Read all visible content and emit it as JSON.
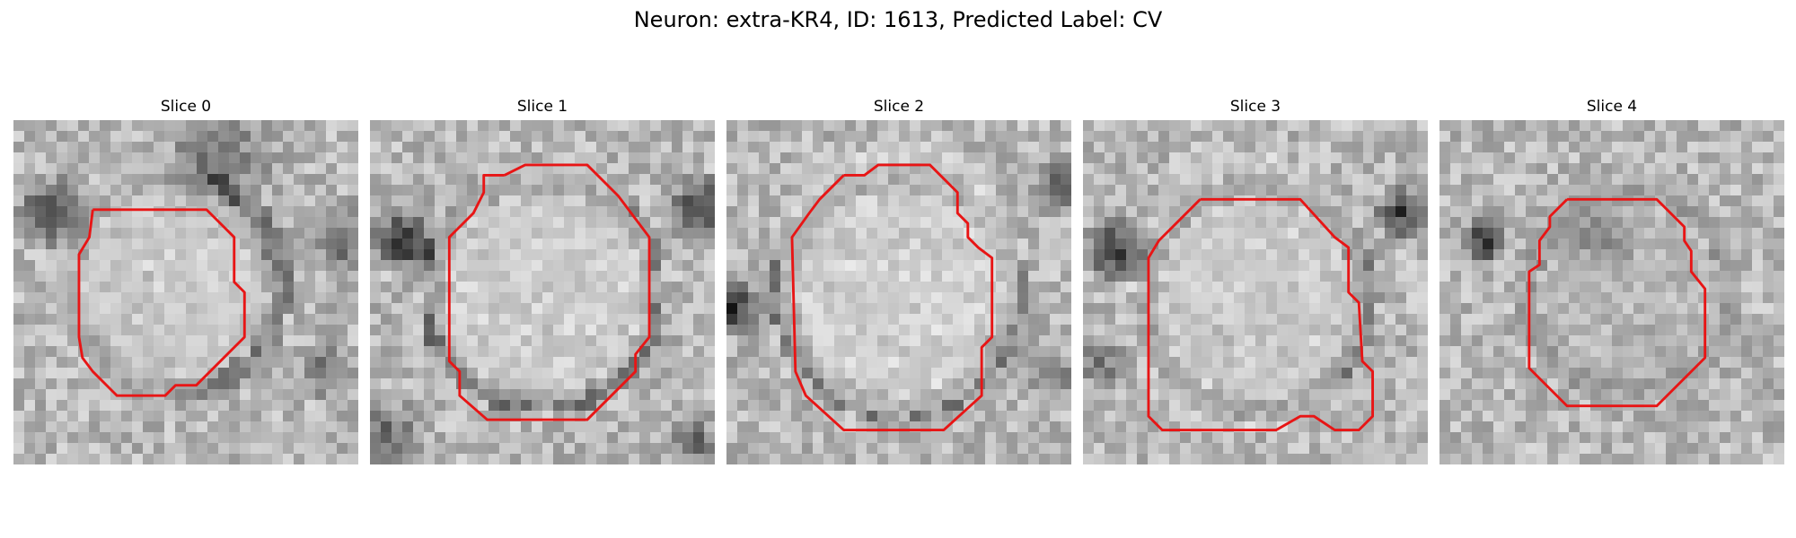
{
  "figure": {
    "title": "Neuron: extra-KR4, ID: 1613, Predicted Label: CV"
  },
  "colors": {
    "contour": "#e81515",
    "background": "#ffffff"
  },
  "panels": [
    {
      "title": "Slice 0",
      "seed": 11,
      "dark_spots": [
        [
          0.12,
          0.27,
          0.08,
          0.55
        ],
        [
          0.97,
          0.35,
          0.08,
          0.35
        ],
        [
          0.9,
          0.73,
          0.06,
          0.3
        ],
        [
          0.6,
          0.12,
          0.12,
          0.3
        ]
      ],
      "halo": [
        0.47,
        0.48,
        0.45,
        0.55,
        0.35
      ],
      "cell": [
        0.4,
        0.46,
        0.3,
        0.35,
        0.85
      ],
      "contour": [
        [
          0.23,
          0.26
        ],
        [
          0.56,
          0.26
        ],
        [
          0.64,
          0.34
        ],
        [
          0.64,
          0.47
        ],
        [
          0.67,
          0.5
        ],
        [
          0.67,
          0.63
        ],
        [
          0.53,
          0.77
        ],
        [
          0.47,
          0.77
        ],
        [
          0.44,
          0.8
        ],
        [
          0.3,
          0.8
        ],
        [
          0.23,
          0.73
        ],
        [
          0.2,
          0.69
        ],
        [
          0.19,
          0.63
        ],
        [
          0.19,
          0.39
        ],
        [
          0.22,
          0.34
        ],
        [
          0.22,
          0.34
        ],
        [
          0.23,
          0.26
        ]
      ]
    },
    {
      "title": "Slice 1",
      "seed": 23,
      "dark_spots": [
        [
          0.1,
          0.35,
          0.07,
          0.6
        ],
        [
          0.96,
          0.25,
          0.07,
          0.5
        ],
        [
          0.05,
          0.92,
          0.08,
          0.35
        ],
        [
          0.93,
          0.93,
          0.06,
          0.35
        ]
      ],
      "halo": [
        0.5,
        0.5,
        0.47,
        0.58,
        0.4
      ],
      "cell": [
        0.5,
        0.48,
        0.33,
        0.35,
        0.88
      ],
      "contour": [
        [
          0.39,
          0.16
        ],
        [
          0.45,
          0.13
        ],
        [
          0.63,
          0.13
        ],
        [
          0.72,
          0.22
        ],
        [
          0.81,
          0.34
        ],
        [
          0.81,
          0.63
        ],
        [
          0.77,
          0.68
        ],
        [
          0.77,
          0.73
        ],
        [
          0.63,
          0.87
        ],
        [
          0.34,
          0.87
        ],
        [
          0.26,
          0.8
        ],
        [
          0.26,
          0.73
        ],
        [
          0.23,
          0.7
        ],
        [
          0.23,
          0.34
        ],
        [
          0.3,
          0.27
        ],
        [
          0.33,
          0.21
        ],
        [
          0.33,
          0.16
        ],
        [
          0.39,
          0.16
        ]
      ]
    },
    {
      "title": "Slice 2",
      "seed": 37,
      "dark_spots": [
        [
          0.02,
          0.55,
          0.06,
          0.6
        ],
        [
          0.97,
          0.2,
          0.06,
          0.45
        ],
        [
          0.95,
          0.75,
          0.05,
          0.3
        ]
      ],
      "halo": [
        0.5,
        0.5,
        0.48,
        0.6,
        0.35
      ],
      "cell": [
        0.5,
        0.46,
        0.35,
        0.4,
        0.9
      ],
      "contour": [
        [
          0.34,
          0.16
        ],
        [
          0.4,
          0.16
        ],
        [
          0.44,
          0.13
        ],
        [
          0.59,
          0.13
        ],
        [
          0.67,
          0.21
        ],
        [
          0.67,
          0.27
        ],
        [
          0.7,
          0.3
        ],
        [
          0.7,
          0.34
        ],
        [
          0.73,
          0.37
        ],
        [
          0.77,
          0.4
        ],
        [
          0.77,
          0.63
        ],
        [
          0.74,
          0.66
        ],
        [
          0.74,
          0.8
        ],
        [
          0.63,
          0.9
        ],
        [
          0.34,
          0.9
        ],
        [
          0.23,
          0.8
        ],
        [
          0.2,
          0.73
        ],
        [
          0.19,
          0.34
        ],
        [
          0.24,
          0.27
        ],
        [
          0.27,
          0.23
        ],
        [
          0.34,
          0.16
        ]
      ]
    },
    {
      "title": "Slice 3",
      "seed": 51,
      "dark_spots": [
        [
          0.1,
          0.38,
          0.07,
          0.55
        ],
        [
          0.93,
          0.27,
          0.06,
          0.55
        ],
        [
          0.05,
          0.7,
          0.06,
          0.3
        ]
      ],
      "halo": [
        0.5,
        0.52,
        0.47,
        0.58,
        0.38
      ],
      "cell": [
        0.47,
        0.5,
        0.35,
        0.42,
        0.85
      ],
      "contour": [
        [
          0.34,
          0.23
        ],
        [
          0.63,
          0.23
        ],
        [
          0.73,
          0.34
        ],
        [
          0.77,
          0.37
        ],
        [
          0.77,
          0.5
        ],
        [
          0.8,
          0.53
        ],
        [
          0.81,
          0.7
        ],
        [
          0.84,
          0.73
        ],
        [
          0.84,
          0.86
        ],
        [
          0.8,
          0.9
        ],
        [
          0.73,
          0.9
        ],
        [
          0.67,
          0.86
        ],
        [
          0.63,
          0.86
        ],
        [
          0.56,
          0.9
        ],
        [
          0.23,
          0.9
        ],
        [
          0.19,
          0.86
        ],
        [
          0.19,
          0.4
        ],
        [
          0.22,
          0.35
        ],
        [
          0.27,
          0.3
        ],
        [
          0.34,
          0.23
        ]
      ]
    },
    {
      "title": "Slice 4",
      "seed": 67,
      "dark_spots": [
        [
          0.13,
          0.35,
          0.05,
          0.6
        ],
        [
          0.47,
          0.34,
          0.08,
          0.2
        ]
      ],
      "halo": [
        0.55,
        0.5,
        0.42,
        0.52,
        0.3
      ],
      "cell": [
        0.56,
        0.5,
        0.33,
        0.35,
        0.72
      ],
      "contour": [
        [
          0.37,
          0.23
        ],
        [
          0.63,
          0.23
        ],
        [
          0.71,
          0.31
        ],
        [
          0.71,
          0.35
        ],
        [
          0.73,
          0.38
        ],
        [
          0.73,
          0.44
        ],
        [
          0.77,
          0.49
        ],
        [
          0.77,
          0.69
        ],
        [
          0.63,
          0.83
        ],
        [
          0.37,
          0.83
        ],
        [
          0.26,
          0.72
        ],
        [
          0.26,
          0.44
        ],
        [
          0.29,
          0.42
        ],
        [
          0.29,
          0.35
        ],
        [
          0.32,
          0.31
        ],
        [
          0.32,
          0.28
        ],
        [
          0.37,
          0.23
        ]
      ]
    }
  ]
}
